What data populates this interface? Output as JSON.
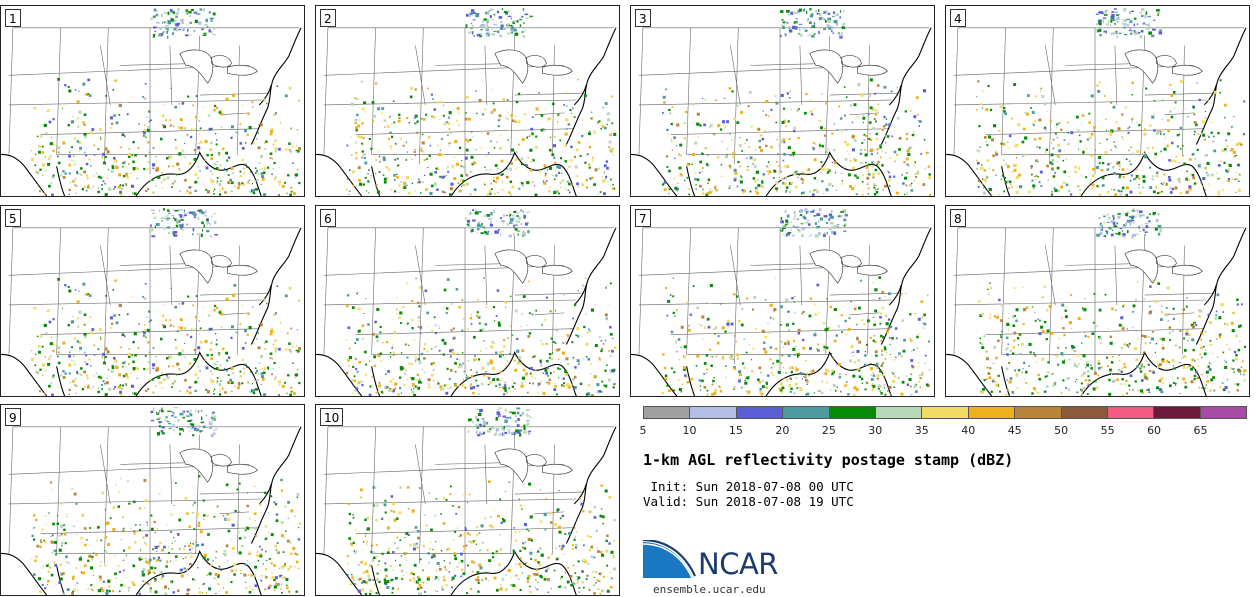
{
  "panels": [
    {
      "label": "1"
    },
    {
      "label": "2"
    },
    {
      "label": "3"
    },
    {
      "label": "4"
    },
    {
      "label": "5"
    },
    {
      "label": "6"
    },
    {
      "label": "7"
    },
    {
      "label": "8"
    },
    {
      "label": "9"
    },
    {
      "label": "10"
    }
  ],
  "colorbar": {
    "colors": [
      "#a0a0a0",
      "#b3bde6",
      "#5a5fd6",
      "#4f9aa0",
      "#078a07",
      "#b9d8b9",
      "#f0dc64",
      "#eeb11e",
      "#b8863a",
      "#8b5a3c",
      "#f35a84",
      "#6b1a3a",
      "#a64ba6"
    ],
    "ticks": [
      "5",
      "10",
      "15",
      "20",
      "25",
      "30",
      "35",
      "40",
      "45",
      "50",
      "55",
      "60",
      "65"
    ]
  },
  "title": "1-km AGL reflectivity postage stamp (dBZ)",
  "init": " Init: Sun 2018-07-08 00 UTC",
  "valid": "Valid: Sun 2018-07-08 19 UTC",
  "logo": {
    "text": "NCAR",
    "url": "ensemble.ucar.edu"
  }
}
